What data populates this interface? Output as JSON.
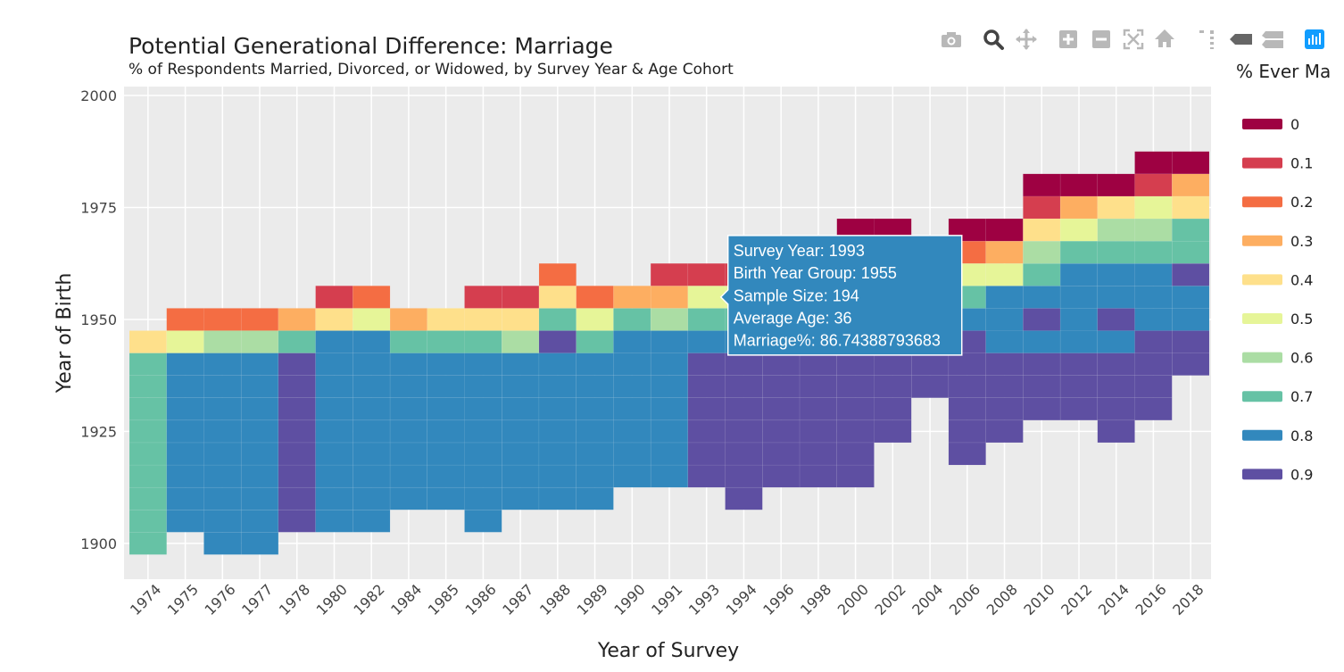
{
  "toolbar": {
    "buttons": [
      {
        "name": "camera-icon",
        "tooltip": "Download plot as a png"
      },
      {
        "name": "zoom-icon",
        "tooltip": "Zoom"
      },
      {
        "name": "pan-icon",
        "tooltip": "Pan"
      },
      {
        "name": "zoom-in-icon",
        "tooltip": "Zoom in"
      },
      {
        "name": "zoom-out-icon",
        "tooltip": "Zoom out"
      },
      {
        "name": "autoscale-icon",
        "tooltip": "Autoscale"
      },
      {
        "name": "home-icon",
        "tooltip": "Reset axes"
      },
      {
        "name": "spike-lines-icon",
        "tooltip": "Toggle Spike Lines"
      },
      {
        "name": "hover-closest-icon",
        "tooltip": "Show closest data on hover"
      },
      {
        "name": "hover-compare-icon",
        "tooltip": "Compare data on hover"
      },
      {
        "name": "plotly-logo-icon",
        "tooltip": "Produced with Plotly"
      }
    ],
    "active": "zoom-icon"
  },
  "chart_data": {
    "type": "heatmap",
    "title": "Potential Generational Difference: Marriage",
    "subtitle": "% of Respondents Married, Divorced, or Widowed, by Survey Year & Age Cohort",
    "xlabel": "Year of Survey",
    "ylabel": "Year of Birth",
    "x_categories": [
      "1974",
      "1975",
      "1976",
      "1977",
      "1978",
      "1980",
      "1982",
      "1984",
      "1985",
      "1986",
      "1987",
      "1988",
      "1989",
      "1990",
      "1991",
      "1993",
      "1994",
      "1996",
      "1998",
      "2000",
      "2002",
      "2004",
      "2006",
      "2008",
      "2010",
      "2012",
      "2014",
      "2016",
      "2018"
    ],
    "y_ticks": [
      1900,
      1925,
      1950,
      1975,
      2000
    ],
    "y_range": [
      1892,
      2002
    ],
    "cell_height_years": 5,
    "grid": true,
    "legend": {
      "title": "% Ever Ma",
      "position": "right",
      "entries": [
        {
          "label": "0",
          "color": "#9e0142"
        },
        {
          "label": "0.1",
          "color": "#d53e4f"
        },
        {
          "label": "0.2",
          "color": "#f46d43"
        },
        {
          "label": "0.3",
          "color": "#fdae61"
        },
        {
          "label": "0.4",
          "color": "#fee08b"
        },
        {
          "label": "0.5",
          "color": "#e6f598"
        },
        {
          "label": "0.6",
          "color": "#abdda4"
        },
        {
          "label": "0.7",
          "color": "#66c2a5"
        },
        {
          "label": "0.8",
          "color": "#3288bd"
        },
        {
          "label": "0.9",
          "color": "#5e4fa2"
        }
      ]
    },
    "columns": [
      {
        "x": "1974",
        "bottom": 1897.5,
        "cells": [
          7,
          4
        ]
      },
      {
        "x": "1975",
        "bottom": 1902.5,
        "cells": [
          8,
          5,
          2
        ]
      },
      {
        "x": "1976",
        "bottom": 1897.5,
        "cells": [
          8,
          6,
          2
        ]
      },
      {
        "x": "1977",
        "bottom": 1897.5,
        "cells": [
          8,
          6,
          2
        ]
      },
      {
        "x": "1978",
        "bottom": 1902.5,
        "cells": [
          9,
          7,
          3
        ]
      },
      {
        "x": "1980",
        "bottom": 1902.5,
        "cells": [
          8,
          8,
          4,
          1
        ]
      },
      {
        "x": "1982",
        "bottom": 1902.5,
        "cells": [
          8,
          8,
          5,
          2
        ]
      },
      {
        "x": "1984",
        "bottom": 1907.5,
        "cells": [
          8,
          7,
          3
        ]
      },
      {
        "x": "1985",
        "bottom": 1907.5,
        "cells": [
          8,
          7,
          4
        ]
      },
      {
        "x": "1986",
        "bottom": 1902.5,
        "cells": [
          8,
          7,
          4,
          1
        ]
      },
      {
        "x": "1987",
        "bottom": 1907.5,
        "cells": [
          8,
          6,
          4,
          1
        ]
      },
      {
        "x": "1988",
        "bottom": 1907.5,
        "cells": [
          8,
          9,
          7,
          4,
          2
        ],
        "overrides": [
          {
            "y": 1910,
            "v": 8
          }
        ]
      },
      {
        "x": "1989",
        "bottom": 1907.5,
        "cells": [
          8,
          7,
          5,
          2
        ]
      },
      {
        "x": "1990",
        "bottom": 1912.5,
        "cells": [
          8,
          8,
          7,
          3
        ]
      },
      {
        "x": "1991",
        "bottom": 1912.5,
        "cells": [
          8,
          8,
          6,
          3,
          1
        ]
      },
      {
        "x": "1993",
        "bottom": 1912.5,
        "cells": [
          9,
          8,
          7,
          5,
          1
        ]
      },
      {
        "x": "1994",
        "bottom": 1907.5,
        "cells": [
          9,
          8,
          7,
          5,
          1
        ]
      },
      {
        "x": "1996",
        "bottom": 1912.5,
        "cells": [
          9,
          8,
          7,
          6,
          3,
          1
        ]
      },
      {
        "x": "1998",
        "bottom": 1912.5,
        "cells": [
          9,
          8,
          7,
          6,
          4,
          1
        ]
      },
      {
        "x": "2000",
        "bottom": 1912.5,
        "cells": [
          9,
          8,
          7,
          6,
          5,
          2,
          0
        ]
      },
      {
        "x": "2002",
        "bottom": 1922.5,
        "cells": [
          9,
          8,
          7,
          7,
          6,
          3,
          0
        ]
      },
      {
        "x": "2004",
        "bottom": 1932.5,
        "cells": [
          9,
          8,
          8,
          7,
          5,
          2
        ]
      },
      {
        "x": "2006",
        "bottom": 1917.5,
        "cells": [
          9,
          9,
          8,
          7,
          5,
          2,
          0
        ]
      },
      {
        "x": "2008",
        "bottom": 1922.5,
        "cells": [
          9,
          8,
          8,
          8,
          5,
          3,
          0
        ]
      },
      {
        "x": "2010",
        "bottom": 1927.5,
        "cells": [
          9,
          8,
          9,
          8,
          7,
          6,
          4,
          1,
          0
        ]
      },
      {
        "x": "2012",
        "bottom": 1927.5,
        "cells": [
          9,
          8,
          8,
          8,
          8,
          7,
          5,
          3,
          0
        ]
      },
      {
        "x": "2014",
        "bottom": 1922.5,
        "cells": [
          9,
          8,
          9,
          8,
          8,
          7,
          6,
          4,
          0
        ]
      },
      {
        "x": "2016",
        "bottom": 1927.5,
        "cells": [
          9,
          9,
          8,
          8,
          8,
          7,
          6,
          5,
          1,
          0
        ]
      },
      {
        "x": "2018",
        "bottom": 1937.5,
        "cells": [
          9,
          9,
          8,
          8,
          9,
          7,
          7,
          4,
          3,
          0
        ]
      }
    ],
    "hover": {
      "survey_year": "1993",
      "birth_year_group": 1955,
      "lines": [
        "Survey Year: 1993",
        "Birth Year Group: 1955",
        "Sample Size: 194",
        "Average Age: 36",
        "Marriage%: 86.74388793683"
      ]
    }
  }
}
